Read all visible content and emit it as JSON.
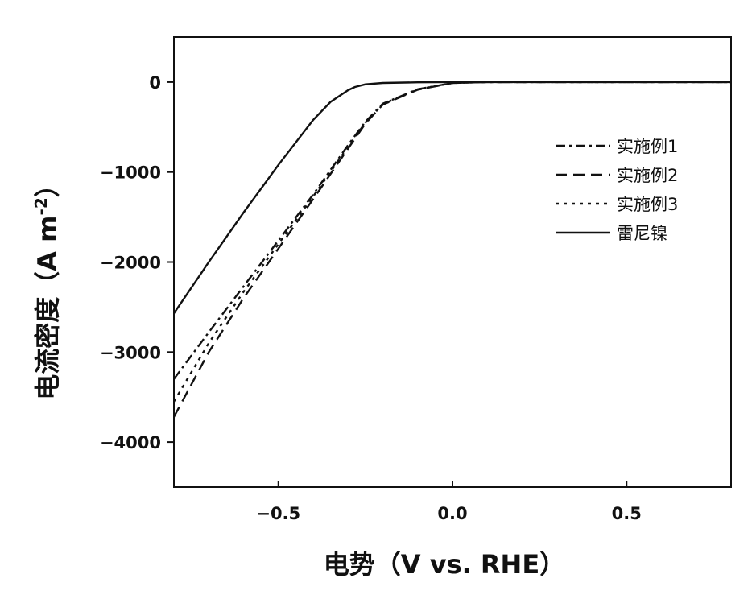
{
  "chart_data": {
    "type": "line",
    "xlabel": "电势（V vs. RHE）",
    "ylabel": "电流密度（A m",
    "ylabel_sup": "-2",
    "ylabel_close": "）",
    "xlim": [
      -0.8,
      0.8
    ],
    "ylim": [
      -4500,
      500
    ],
    "xticks": [
      -0.5,
      0.0,
      0.5
    ],
    "xtick_labels": [
      "−0.5",
      "0.0",
      "0.5"
    ],
    "yticks": [
      0,
      -1000,
      -2000,
      -3000,
      -4000
    ],
    "ytick_labels": [
      "0",
      "−1000",
      "−2000",
      "−3000",
      "−4000"
    ],
    "legend_position": "right",
    "series": [
      {
        "name": "实施例1",
        "dash": "dashdot",
        "x": [
          -0.8,
          -0.7,
          -0.6,
          -0.5,
          -0.4,
          -0.3,
          -0.25,
          -0.2,
          -0.1,
          0.0,
          0.1,
          0.3,
          0.5,
          0.8
        ],
        "y": [
          -3300,
          -2780,
          -2270,
          -1760,
          -1250,
          -700,
          -440,
          -240,
          -80,
          -10,
          0,
          0,
          0,
          0
        ]
      },
      {
        "name": "实施例2",
        "dash": "dashed",
        "x": [
          -0.8,
          -0.7,
          -0.6,
          -0.5,
          -0.4,
          -0.3,
          -0.25,
          -0.2,
          -0.1,
          0.0,
          0.1,
          0.3,
          0.5,
          0.8
        ],
        "y": [
          -3720,
          -3000,
          -2400,
          -1850,
          -1300,
          -740,
          -460,
          -250,
          -85,
          -10,
          0,
          0,
          0,
          0
        ]
      },
      {
        "name": "实施例3",
        "dash": "dotted",
        "x": [
          -0.8,
          -0.7,
          -0.6,
          -0.5,
          -0.4,
          -0.3,
          -0.25,
          -0.2,
          -0.1,
          0.0,
          0.1,
          0.3,
          0.5,
          0.8
        ],
        "y": [
          -3550,
          -2900,
          -2330,
          -1800,
          -1270,
          -720,
          -450,
          -245,
          -82,
          -10,
          0,
          0,
          0,
          0
        ]
      },
      {
        "name": "雷尼镍",
        "dash": "solid",
        "x": [
          -0.8,
          -0.7,
          -0.6,
          -0.5,
          -0.4,
          -0.35,
          -0.3,
          -0.28,
          -0.25,
          -0.2,
          -0.1,
          0.0,
          0.2,
          0.5,
          0.8
        ],
        "y": [
          -2570,
          -2000,
          -1450,
          -920,
          -420,
          -220,
          -90,
          -55,
          -25,
          -10,
          -3,
          0,
          0,
          0,
          0
        ]
      }
    ]
  }
}
